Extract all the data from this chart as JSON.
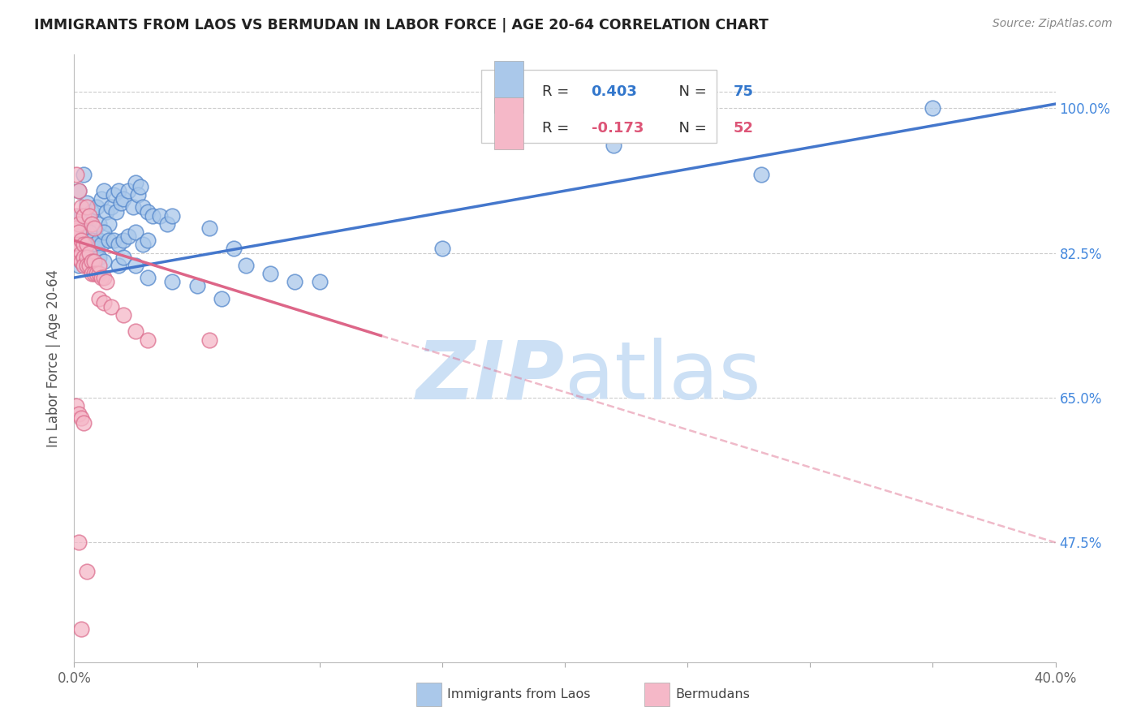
{
  "title": "IMMIGRANTS FROM LAOS VS BERMUDAN IN LABOR FORCE | AGE 20-64 CORRELATION CHART",
  "source": "Source: ZipAtlas.com",
  "ylabel": "In Labor Force | Age 20-64",
  "xlim": [
    0.0,
    0.4
  ],
  "ylim": [
    0.33,
    1.065
  ],
  "yticks": [
    0.475,
    0.65,
    0.825,
    1.0
  ],
  "yticklabels": [
    "47.5%",
    "65.0%",
    "82.5%",
    "100.0%"
  ],
  "xtick_positions": [
    0.0,
    0.05,
    0.1,
    0.15,
    0.2,
    0.25,
    0.3,
    0.35,
    0.4
  ],
  "xtick_labels": [
    "0.0%",
    "",
    "",
    "",
    "",
    "",
    "",
    "",
    "40.0%"
  ],
  "blue_color": "#aac8ea",
  "blue_edge": "#5588cc",
  "pink_color": "#f5b8c8",
  "pink_edge": "#dd7090",
  "trend_blue": "#4477cc",
  "trend_pink": "#dd6688",
  "watermark_color": "#cce0f5",
  "blue_trend": [
    0.0,
    0.4,
    0.795,
    1.005
  ],
  "pink_trend_solid": [
    0.0,
    0.125,
    0.84,
    0.725
  ],
  "pink_trend_dash": [
    0.125,
    0.4,
    0.725,
    0.475
  ],
  "blue_x": [
    0.002,
    0.003,
    0.004,
    0.005,
    0.006,
    0.007,
    0.008,
    0.009,
    0.01,
    0.011,
    0.012,
    0.013,
    0.014,
    0.015,
    0.016,
    0.017,
    0.018,
    0.019,
    0.02,
    0.022,
    0.024,
    0.025,
    0.026,
    0.027,
    0.028,
    0.03,
    0.032,
    0.035,
    0.038,
    0.04,
    0.003,
    0.004,
    0.005,
    0.006,
    0.007,
    0.008,
    0.009,
    0.01,
    0.011,
    0.012,
    0.014,
    0.016,
    0.018,
    0.02,
    0.022,
    0.025,
    0.028,
    0.03,
    0.055,
    0.065,
    0.07,
    0.08,
    0.09,
    0.1,
    0.15,
    0.22,
    0.28,
    0.35,
    0.002,
    0.003,
    0.004,
    0.005,
    0.006,
    0.008,
    0.01,
    0.012,
    0.018,
    0.02,
    0.025,
    0.03,
    0.04,
    0.05,
    0.06
  ],
  "blue_y": [
    0.9,
    0.87,
    0.92,
    0.885,
    0.865,
    0.875,
    0.85,
    0.88,
    0.86,
    0.89,
    0.9,
    0.875,
    0.86,
    0.88,
    0.895,
    0.875,
    0.9,
    0.885,
    0.89,
    0.9,
    0.88,
    0.91,
    0.895,
    0.905,
    0.88,
    0.875,
    0.87,
    0.87,
    0.86,
    0.87,
    0.84,
    0.85,
    0.84,
    0.85,
    0.84,
    0.835,
    0.83,
    0.84,
    0.835,
    0.85,
    0.84,
    0.84,
    0.835,
    0.84,
    0.845,
    0.85,
    0.835,
    0.84,
    0.855,
    0.83,
    0.81,
    0.8,
    0.79,
    0.79,
    0.83,
    0.955,
    0.92,
    1.0,
    0.81,
    0.815,
    0.82,
    0.81,
    0.82,
    0.81,
    0.82,
    0.815,
    0.81,
    0.82,
    0.81,
    0.795,
    0.79,
    0.785,
    0.77
  ],
  "pink_x": [
    0.001,
    0.001,
    0.001,
    0.001,
    0.001,
    0.002,
    0.002,
    0.002,
    0.002,
    0.003,
    0.003,
    0.003,
    0.004,
    0.004,
    0.004,
    0.005,
    0.005,
    0.005,
    0.006,
    0.006,
    0.007,
    0.007,
    0.008,
    0.008,
    0.009,
    0.01,
    0.01,
    0.011,
    0.012,
    0.013,
    0.001,
    0.002,
    0.003,
    0.004,
    0.005,
    0.006,
    0.007,
    0.008,
    0.01,
    0.012,
    0.015,
    0.02,
    0.025,
    0.03,
    0.055,
    0.001,
    0.002,
    0.003,
    0.004,
    0.002,
    0.003,
    0.005
  ],
  "pink_y": [
    0.87,
    0.855,
    0.845,
    0.83,
    0.82,
    0.86,
    0.85,
    0.835,
    0.82,
    0.84,
    0.825,
    0.815,
    0.835,
    0.82,
    0.81,
    0.835,
    0.82,
    0.81,
    0.825,
    0.81,
    0.815,
    0.8,
    0.815,
    0.8,
    0.8,
    0.8,
    0.81,
    0.795,
    0.795,
    0.79,
    0.92,
    0.9,
    0.88,
    0.87,
    0.88,
    0.87,
    0.86,
    0.855,
    0.77,
    0.765,
    0.76,
    0.75,
    0.73,
    0.72,
    0.72,
    0.64,
    0.63,
    0.625,
    0.62,
    0.475,
    0.37,
    0.44
  ]
}
